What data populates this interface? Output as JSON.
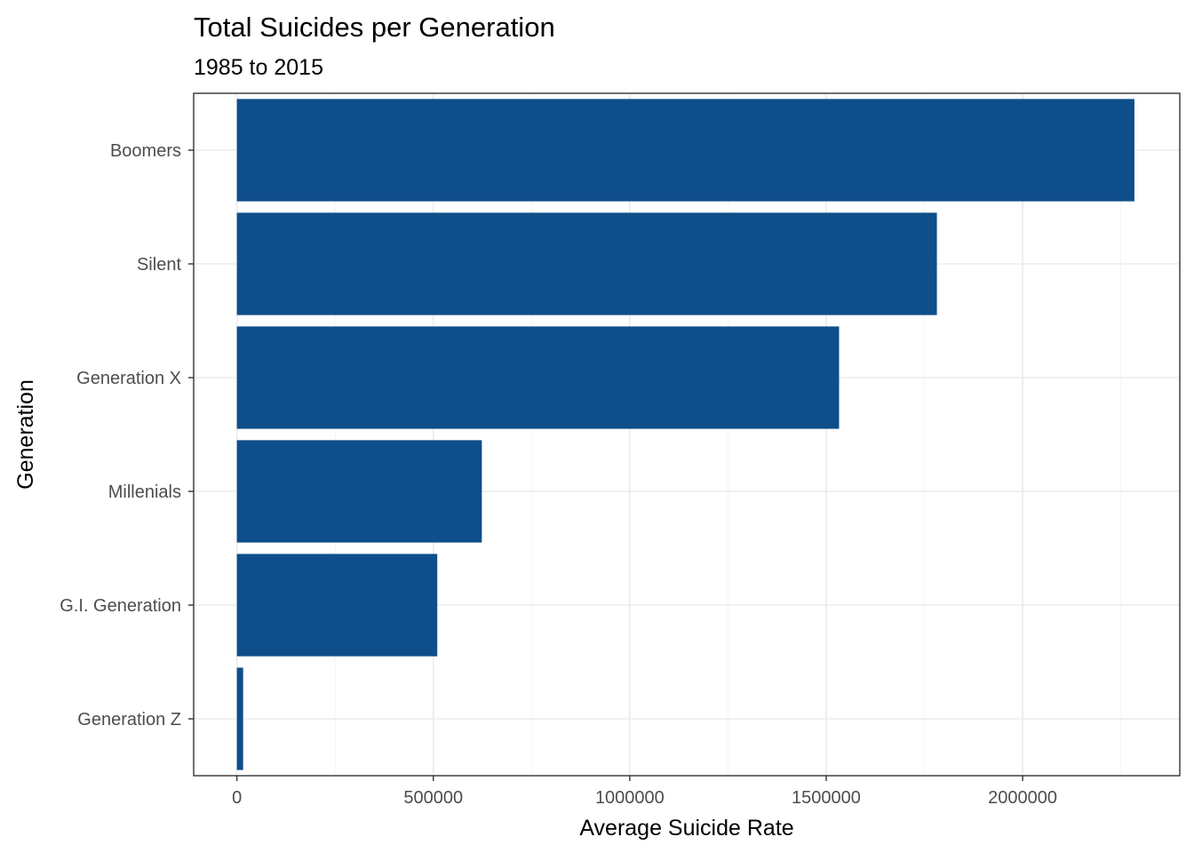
{
  "chart_data": {
    "type": "bar",
    "orientation": "horizontal",
    "title": "Total Suicides per Generation",
    "subtitle": "1985 to 2015",
    "xlabel": "Average Suicide Rate",
    "ylabel": "Generation",
    "categories": [
      "Boomers",
      "Silent",
      "Generation X",
      "Millenials",
      "G.I. Generation",
      "Generation Z"
    ],
    "values": [
      2284498,
      1781744,
      1532804,
      623459,
      510009,
      15906
    ],
    "xlim": [
      -110000,
      2400000
    ],
    "xticks": [
      0,
      500000,
      1000000,
      1500000,
      2000000
    ],
    "xtick_labels": [
      "0",
      "500000",
      "1000000",
      "1500000",
      "2000000"
    ],
    "bar_color": "#0e4e8a",
    "grid": true,
    "legend": "none"
  }
}
